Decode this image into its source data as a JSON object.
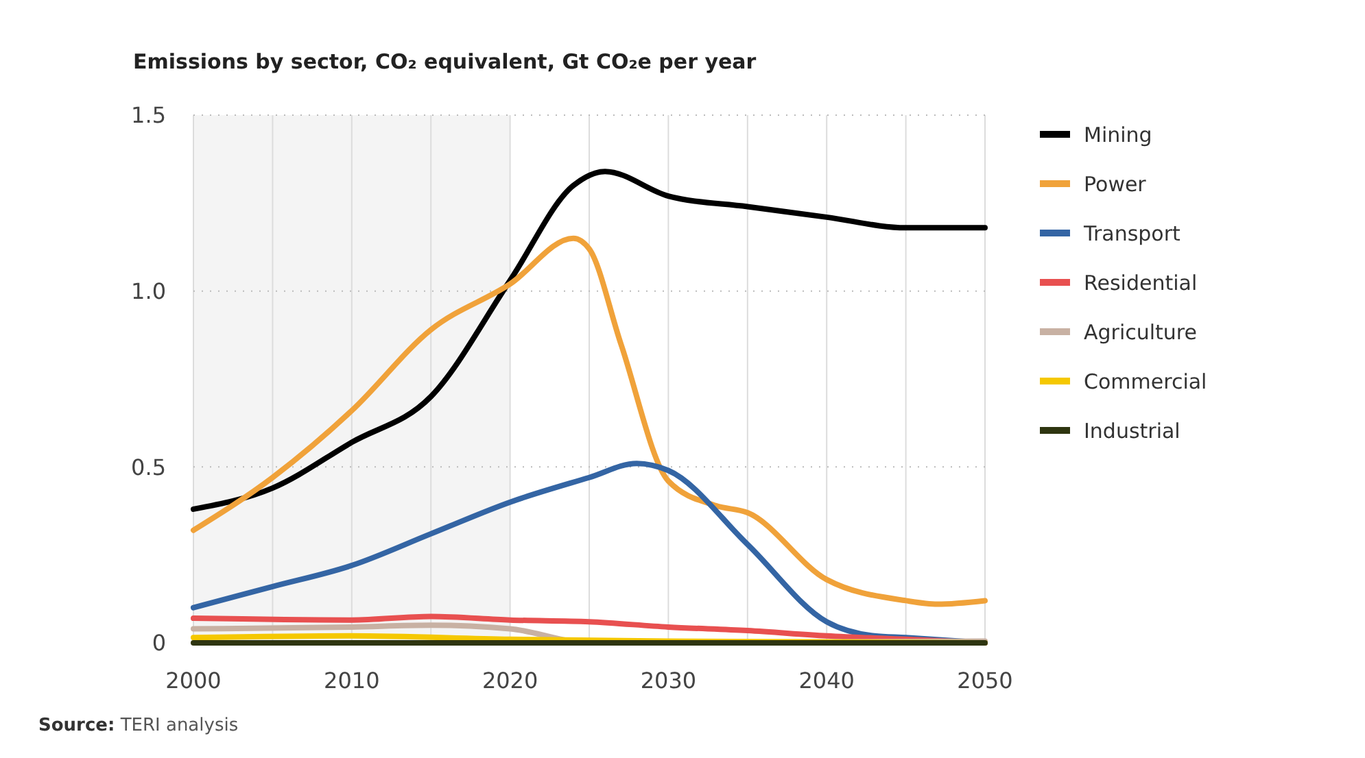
{
  "chart_data": {
    "type": "line",
    "title": "Emissions by sector, CO₂ equivalent, Gt CO₂e per year",
    "xlim": [
      2000,
      2050
    ],
    "xticks": [
      2000,
      {
        "value": 2005,
        "label": null
      },
      2010,
      {
        "value": 2015,
        "label": null
      },
      2020,
      {
        "value": 2025,
        "label": null
      },
      2030,
      {
        "value": 2035,
        "label": null
      },
      2040,
      {
        "value": 2045,
        "label": null
      },
      2050
    ],
    "ylim": [
      0,
      1.5
    ],
    "yticks": [
      {
        "value": 0,
        "label": "0"
      },
      0.5,
      {
        "value": 1,
        "label": "1.0"
      },
      1.5
    ],
    "grid": true,
    "legend": "right",
    "line_style": "solid",
    "marker": "none",
    "bands": [
      {
        "axis": "x",
        "from": 2000,
        "to": 2020,
        "color": "#f4f4f4"
      }
    ],
    "annotations": [
      "Source: TERI analysis"
    ],
    "series": [
      {
        "name": "Mining",
        "color": "#000000",
        "x": [
          2000,
          2005,
          2010,
          2015,
          2020,
          2024,
          2026,
          2030,
          2035,
          2040,
          2045,
          2050
        ],
        "values": [
          0.38,
          0.44,
          0.57,
          0.7,
          1.03,
          1.3,
          1.34,
          1.27,
          1.24,
          1.21,
          1.18,
          1.18
        ]
      },
      {
        "name": "Power",
        "color": "#f0a23a",
        "x": [
          2000,
          2005,
          2010,
          2015,
          2020,
          2024,
          2025,
          2027,
          2030,
          2033,
          2035,
          2040,
          2045,
          2047,
          2050
        ],
        "values": [
          0.32,
          0.47,
          0.66,
          0.89,
          1.02,
          1.15,
          1.12,
          0.85,
          0.46,
          0.39,
          0.37,
          0.18,
          0.12,
          0.11,
          0.12
        ]
      },
      {
        "name": "Transport",
        "color": "#3465a4",
        "x": [
          2000,
          2005,
          2010,
          2015,
          2020,
          2025,
          2028,
          2030,
          2035,
          2040,
          2043,
          2045,
          2050
        ],
        "values": [
          0.1,
          0.16,
          0.22,
          0.31,
          0.4,
          0.47,
          0.51,
          0.49,
          0.28,
          0.06,
          0.02,
          0.015,
          0
        ]
      },
      {
        "name": "Residential",
        "color": "#e85050",
        "x": [
          2000,
          2010,
          2015,
          2020,
          2025,
          2030,
          2035,
          2040,
          2045,
          2050
        ],
        "values": [
          0.07,
          0.065,
          0.075,
          0.065,
          0.06,
          0.045,
          0.035,
          0.02,
          0.01,
          0
        ]
      },
      {
        "name": "Agriculture",
        "color": "#c8b1a3",
        "x": [
          2000,
          2010,
          2015,
          2020,
          2025,
          2030,
          2050
        ],
        "values": [
          0.04,
          0.045,
          0.05,
          0.04,
          0,
          null,
          0.005
        ]
      },
      {
        "name": "Commercial",
        "color": "#f5c800",
        "x": [
          2000,
          2010,
          2020,
          2030,
          2050
        ],
        "values": [
          0.015,
          0.02,
          0.01,
          0.005,
          0
        ]
      },
      {
        "name": "Industrial",
        "color": "#2e3510",
        "x": [
          2000,
          2025,
          2050
        ],
        "values": [
          0,
          0,
          0
        ]
      }
    ]
  }
}
